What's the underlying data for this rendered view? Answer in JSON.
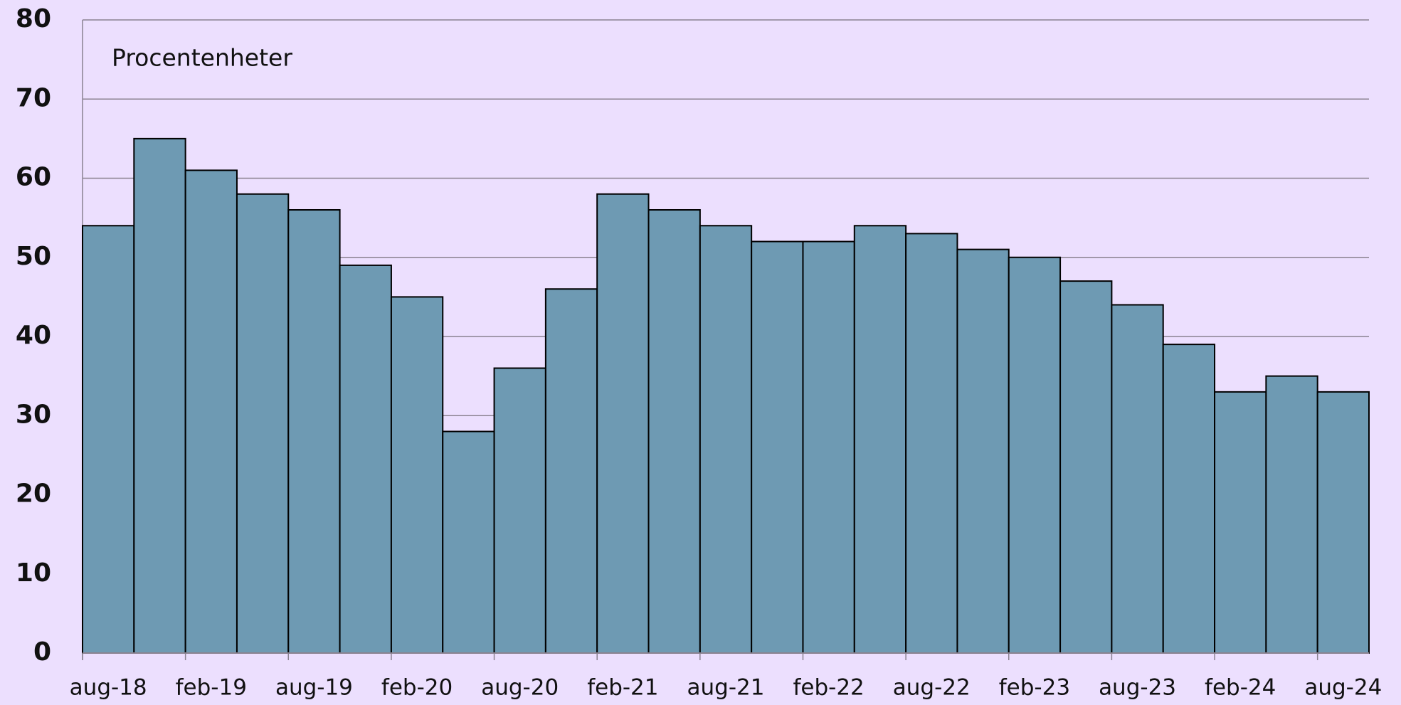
{
  "chart_data": {
    "type": "bar",
    "annotation": "Procentenheter",
    "categories": [
      "aug-18",
      null,
      "feb-19",
      null,
      "aug-19",
      null,
      "feb-20",
      null,
      "aug-20",
      null,
      "feb-21",
      null,
      "aug-21",
      null,
      "feb-22",
      null,
      "aug-22",
      null,
      "feb-23",
      null,
      "aug-23",
      null,
      "feb-24",
      null,
      "aug-24"
    ],
    "values": [
      54,
      65,
      61,
      58,
      56,
      49,
      45,
      28,
      36,
      46,
      58,
      56,
      54,
      52,
      52,
      54,
      53,
      51,
      50,
      47,
      44,
      39,
      33,
      35,
      33
    ],
    "color": "#6e9ab3",
    "ylim": [
      0,
      80
    ],
    "yticks": [
      0,
      10,
      20,
      30,
      40,
      50,
      60,
      70,
      80
    ],
    "grid": true
  }
}
